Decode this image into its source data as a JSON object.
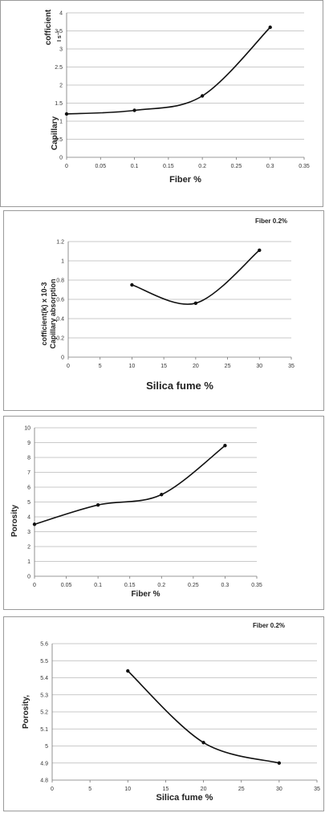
{
  "chart_data": [
    {
      "type": "line",
      "xlabel": "Fiber %",
      "ylabel": "Capillary",
      "ylabel_extra": "cofficient",
      "ylabel_small": "I s⁻¹",
      "corner_label": "",
      "xlim": [
        0,
        0.35
      ],
      "ylim": [
        0,
        4
      ],
      "xticks": [
        0,
        0.05,
        0.1,
        0.15,
        0.2,
        0.25,
        0.3,
        0.35
      ],
      "xtick_labels": [
        "0",
        "0.05",
        "0.1",
        "0.15",
        "0.2",
        "0.25",
        "0.3",
        "0.35"
      ],
      "yticks": [
        0,
        0.5,
        1,
        1.5,
        2,
        2.5,
        3,
        3.5,
        4
      ],
      "ytick_labels": [
        "0",
        "0.5",
        "1",
        "1.5",
        "2",
        "2.5",
        "3",
        "3.5",
        "4"
      ],
      "x": [
        0,
        0.1,
        0.2,
        0.3
      ],
      "y": [
        1.2,
        1.3,
        1.7,
        3.6
      ],
      "grid": true
    },
    {
      "type": "line",
      "xlabel": "Silica fume %",
      "ylabel": "Capillary absorption",
      "ylabel_extra": "cofficient(k) x 10-3",
      "ylabel_small": "",
      "corner_label": "Fiber 0.2%",
      "xlim": [
        0,
        35
      ],
      "ylim": [
        0,
        1.2
      ],
      "xticks": [
        0,
        5,
        10,
        15,
        20,
        25,
        30,
        35
      ],
      "xtick_labels": [
        "0",
        "5",
        "10",
        "15",
        "20",
        "25",
        "30",
        "35"
      ],
      "yticks": [
        0,
        0.2,
        0.4,
        0.6,
        0.8,
        1,
        1.2
      ],
      "ytick_labels": [
        "0",
        "0.2",
        "0.4",
        "0.6",
        "0.8",
        "1",
        "1.2"
      ],
      "x": [
        10,
        20,
        30
      ],
      "y": [
        0.75,
        0.56,
        1.11
      ],
      "grid": true
    },
    {
      "type": "line",
      "xlabel": "Fiber %",
      "ylabel": "Porosity",
      "ylabel_extra": "",
      "ylabel_small": "",
      "corner_label": "",
      "xlim": [
        0,
        0.35
      ],
      "ylim": [
        0,
        10
      ],
      "xticks": [
        0,
        0.05,
        0.1,
        0.15,
        0.2,
        0.25,
        0.3,
        0.35
      ],
      "xtick_labels": [
        "0",
        "0.05",
        "0.1",
        "0.15",
        "0.2",
        "0.25",
        "0.3",
        "0.35"
      ],
      "yticks": [
        0,
        1,
        2,
        3,
        4,
        5,
        6,
        7,
        8,
        9,
        10
      ],
      "ytick_labels": [
        "0",
        "1",
        "2",
        "3",
        "4",
        "5",
        "6",
        "7",
        "8",
        "9",
        "10"
      ],
      "x": [
        0,
        0.1,
        0.2,
        0.3
      ],
      "y": [
        3.5,
        4.8,
        5.5,
        8.8
      ],
      "grid": true
    },
    {
      "type": "line",
      "xlabel": "Silica fume %",
      "ylabel": "Porosity,",
      "ylabel_extra": "",
      "ylabel_small": "",
      "corner_label": "Fiber 0.2%",
      "xlim": [
        0,
        35
      ],
      "ylim": [
        4.8,
        5.6
      ],
      "xticks": [
        0,
        5,
        10,
        15,
        20,
        25,
        30,
        35
      ],
      "xtick_labels": [
        "0",
        "5",
        "10",
        "15",
        "20",
        "25",
        "30",
        "35"
      ],
      "yticks": [
        4.8,
        4.9,
        5,
        5.1,
        5.2,
        5.3,
        5.4,
        5.5,
        5.6
      ],
      "ytick_labels": [
        "4.8",
        "4.9",
        "5",
        "5.1",
        "5.2",
        "5.3",
        "5.4",
        "5.5",
        "5.6"
      ],
      "x": [
        10,
        20,
        30
      ],
      "y": [
        5.44,
        5.02,
        4.9
      ],
      "grid": true
    }
  ]
}
